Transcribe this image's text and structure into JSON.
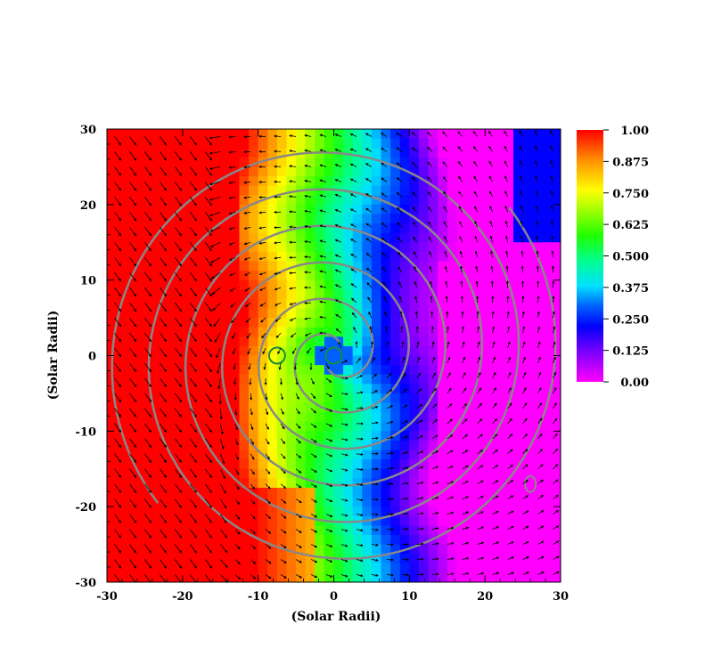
{
  "chart_data": {
    "type": "heatmap",
    "title": "",
    "xlabel": "(Solar Radii)",
    "ylabel": "(Solar Radii)",
    "xlim": [
      -30,
      30
    ],
    "ylim": [
      -30,
      30
    ],
    "xticks": [
      -30,
      -20,
      -10,
      0,
      10,
      20,
      30
    ],
    "yticks": [
      -30,
      -20,
      -10,
      0,
      10,
      20,
      30
    ],
    "x_tick_labels": [
      "-30",
      "-20",
      "-10",
      "0",
      "10",
      "20",
      "30"
    ],
    "y_tick_labels": [
      "-30",
      "-20",
      "-10",
      "0",
      "10",
      "20",
      "30"
    ],
    "colorbar": {
      "range": [
        0,
        1
      ],
      "colormap": "rainbow",
      "ticks": [
        1.0,
        0.875,
        0.75,
        0.625,
        0.5,
        0.375,
        0.25,
        0.125,
        0.0
      ],
      "tick_labels": [
        "1.00",
        "0.875",
        "0.750",
        "0.625",
        "0.500",
        "0.375",
        "0.250",
        "0.125",
        "0.00"
      ],
      "placement": "right"
    },
    "field_features": {
      "high_region": "left side (x < -12), value ~1.0",
      "low_region": "right side (x 15 to 30), value ~0.0-0.15",
      "spiral_center": [
        0,
        0
      ],
      "secondary_center": [
        -7.5,
        0
      ]
    },
    "overlays": {
      "vector_field": "black arrows, counter-clockwise circulation around origin",
      "contours_color": "#888888",
      "contour_type": "spiral"
    }
  }
}
